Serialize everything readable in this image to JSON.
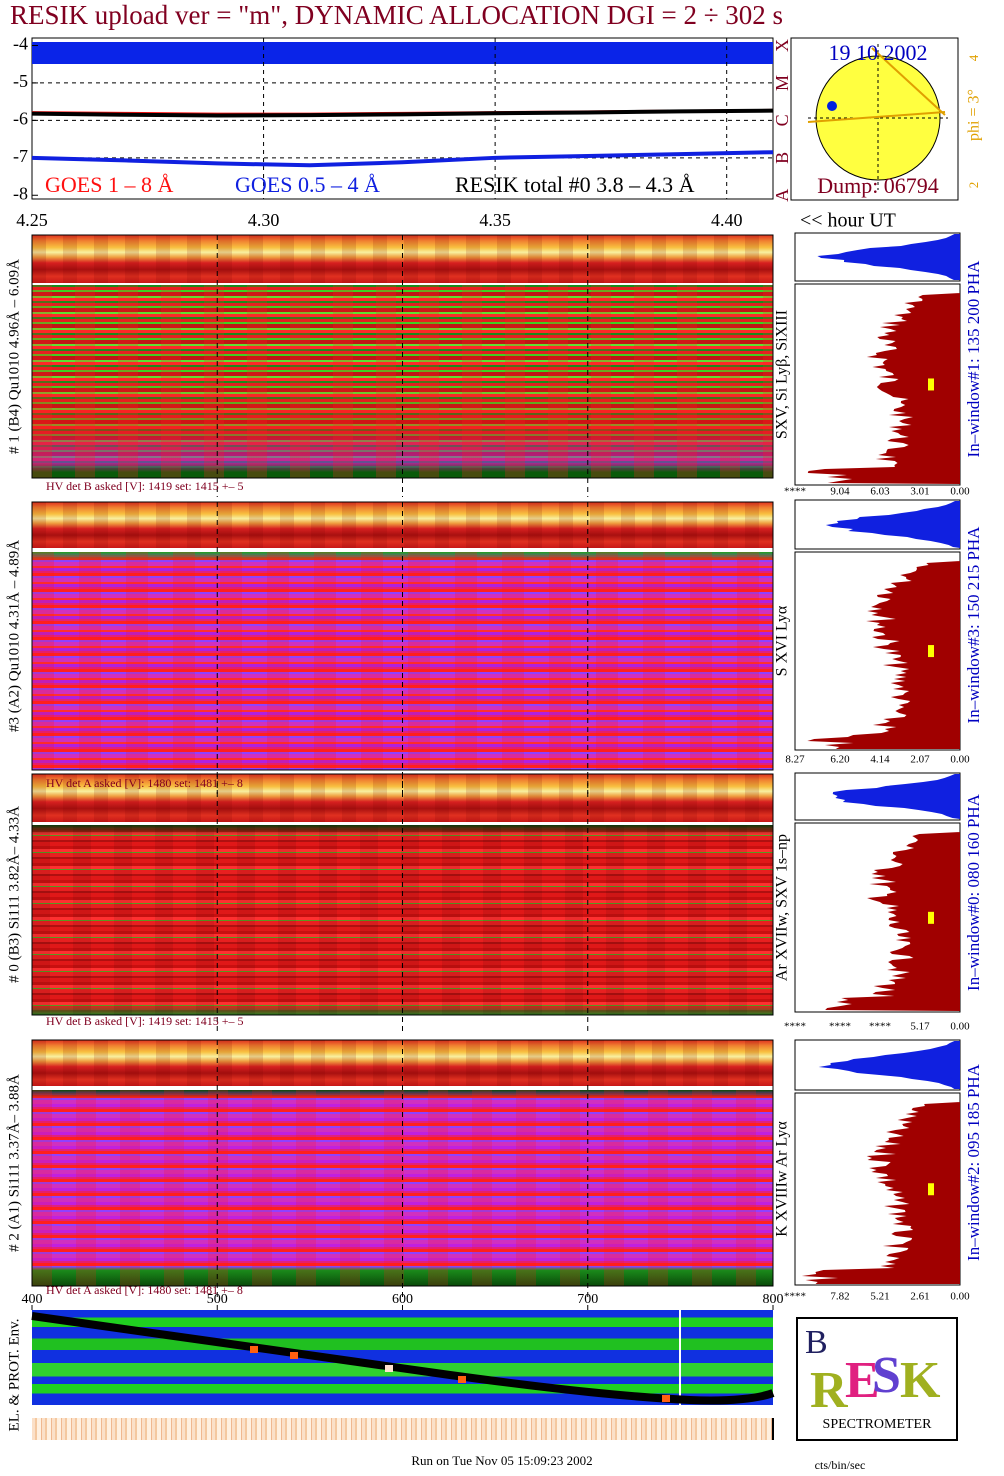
{
  "title": "RESIK upload ver = \"m\", DYNAMIC ALLOCATION  DGI =   2 ÷ 302 s",
  "chart_data": {
    "type": "line",
    "xlim": [
      4.25,
      4.41
    ],
    "xticks": [
      4.25,
      {
        "value": 4.3,
        "label": "4.30"
      },
      4.35,
      {
        "value": 4.4,
        "label": "4.40"
      }
    ],
    "x_unit": "<< hour UT",
    "ylim": [
      -8.1,
      -3.8
    ],
    "yticks": [
      -4,
      -5,
      -6,
      -7,
      -8
    ],
    "grid": true,
    "x": [
      4.25,
      4.27,
      4.29,
      4.31,
      4.33,
      4.35,
      4.37,
      4.39,
      4.41
    ],
    "series": [
      {
        "name": "GOES 1 – 8 Å",
        "color": "#ff1010",
        "values": [
          -5.78,
          -5.8,
          -5.82,
          -5.82,
          -5.8,
          -5.78,
          -5.76,
          -5.74,
          -5.72
        ]
      },
      {
        "name": "GOES 0.5 – 4 Å",
        "color": "#1020e0",
        "values": [
          -7.0,
          -7.07,
          -7.15,
          -7.2,
          -7.12,
          -7.0,
          -6.95,
          -6.9,
          -6.85
        ]
      },
      {
        "name": "RESIK total #0  3.8 – 4.3 Å",
        "color": "#000000",
        "values": [
          -5.82,
          -5.85,
          -5.87,
          -5.86,
          -5.84,
          -5.81,
          -5.79,
          -5.76,
          -5.74
        ]
      }
    ]
  },
  "sun_panel": {
    "date": "19 10 2002",
    "dump": "Dump: 06794",
    "phi": "phi =  3°",
    "scale": [
      "4",
      "2"
    ],
    "classes": [
      "X",
      "M",
      "C",
      "B",
      "A"
    ]
  },
  "channels": [
    {
      "label": "# 1 (B4) Qu1010 4.96Å – 6.09Å",
      "lines": "SXV, Si Lyβ, SiXIII",
      "window": "In–window#1:  135 200 PHA",
      "hv": "HV det B asked [V]:  1419 set:  1415  +–   5",
      "pha_ticks": [
        "****",
        "9.04",
        "6.03",
        "3.01",
        "0.00"
      ]
    },
    {
      "label": "#3 (A2) Qu1010  4.31Å – 4.89Å",
      "lines": "S XVI Lyα",
      "window": "In–window#3:  150 215 PHA",
      "hv": "HV det A asked [V]:  1480 set:  1481  +–   8",
      "pha_ticks": [
        "8.27",
        "6.20",
        "4.14",
        "2.07",
        "0.00"
      ]
    },
    {
      "label": "# 0 (B3) Si111  3.82Å– 4.33Å",
      "lines": "Ar XVIIw,  SXV 1s–np",
      "window": "In–window#0:  080 160 PHA",
      "hv": "HV det B asked [V]:  1419 set:  1415  +–   5",
      "pha_ticks": [
        "****",
        "****",
        "****",
        "5.17",
        "0.00"
      ]
    },
    {
      "label": "# 2 (A1) Si111  3.37Å– 3.88Å",
      "lines": "K XVIIIw  Ar Lyα",
      "window": "In–window#2:  095 185 PHA",
      "hv": "HV det A asked [V]:  1480 set:  1481  +–   8",
      "pha_ticks": [
        "****",
        "7.82",
        "5.21",
        "2.61",
        "0.00"
      ]
    }
  ],
  "pha_unit": "cts/bin/sec",
  "env_panel": {
    "label": "EL. & PROT. Env.",
    "xlim": [
      400,
      800
    ],
    "xticks": [
      400,
      500,
      600,
      700,
      800
    ]
  },
  "logo": {
    "text": "SPECTROMETER"
  },
  "footer": "Run on Tue Nov 05 15:09:23 2002"
}
